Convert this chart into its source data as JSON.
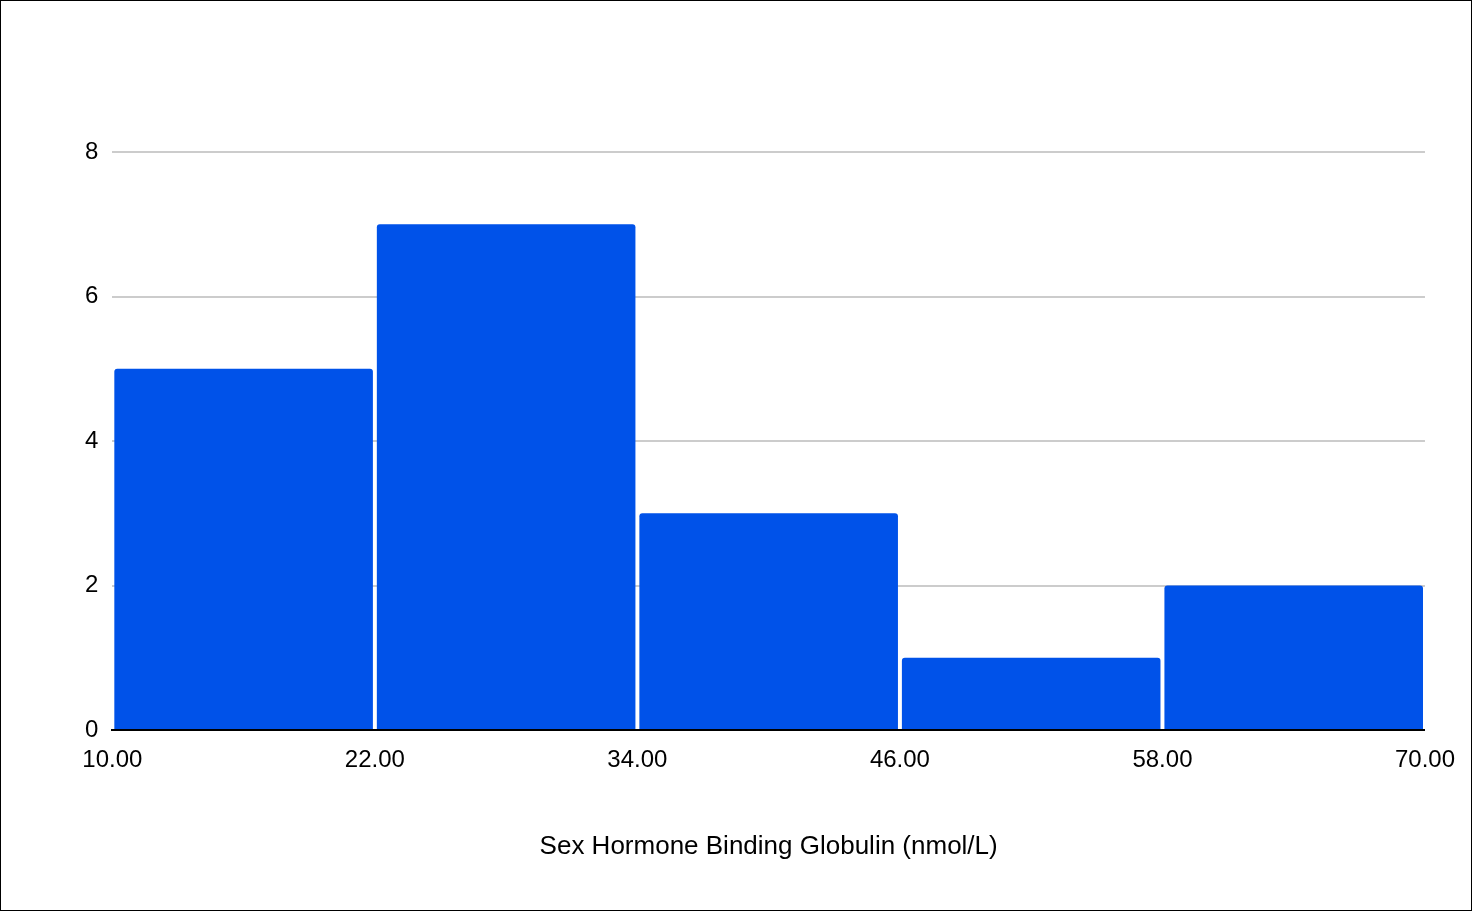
{
  "chart_data": {
    "type": "histogram",
    "xlabel": "Sex Hormone Binding Globulin (nmol/L)",
    "bins": [
      10,
      22,
      34,
      46,
      58,
      70
    ],
    "values": [
      5,
      7,
      3,
      1,
      2
    ],
    "color": "#0052e9",
    "xlim": [
      10,
      70
    ],
    "xticks": [
      {
        "value": 10,
        "label": "10.00"
      },
      {
        "value": 22,
        "label": "22.00"
      },
      {
        "value": 34,
        "label": "34.00"
      },
      {
        "value": 46,
        "label": "46.00"
      },
      {
        "value": 58,
        "label": "58.00"
      },
      {
        "value": 70,
        "label": "70.00"
      }
    ],
    "ylim": [
      0,
      8
    ],
    "yticks": [
      0,
      2,
      4,
      6,
      8
    ],
    "grid": "y",
    "legend": false
  }
}
